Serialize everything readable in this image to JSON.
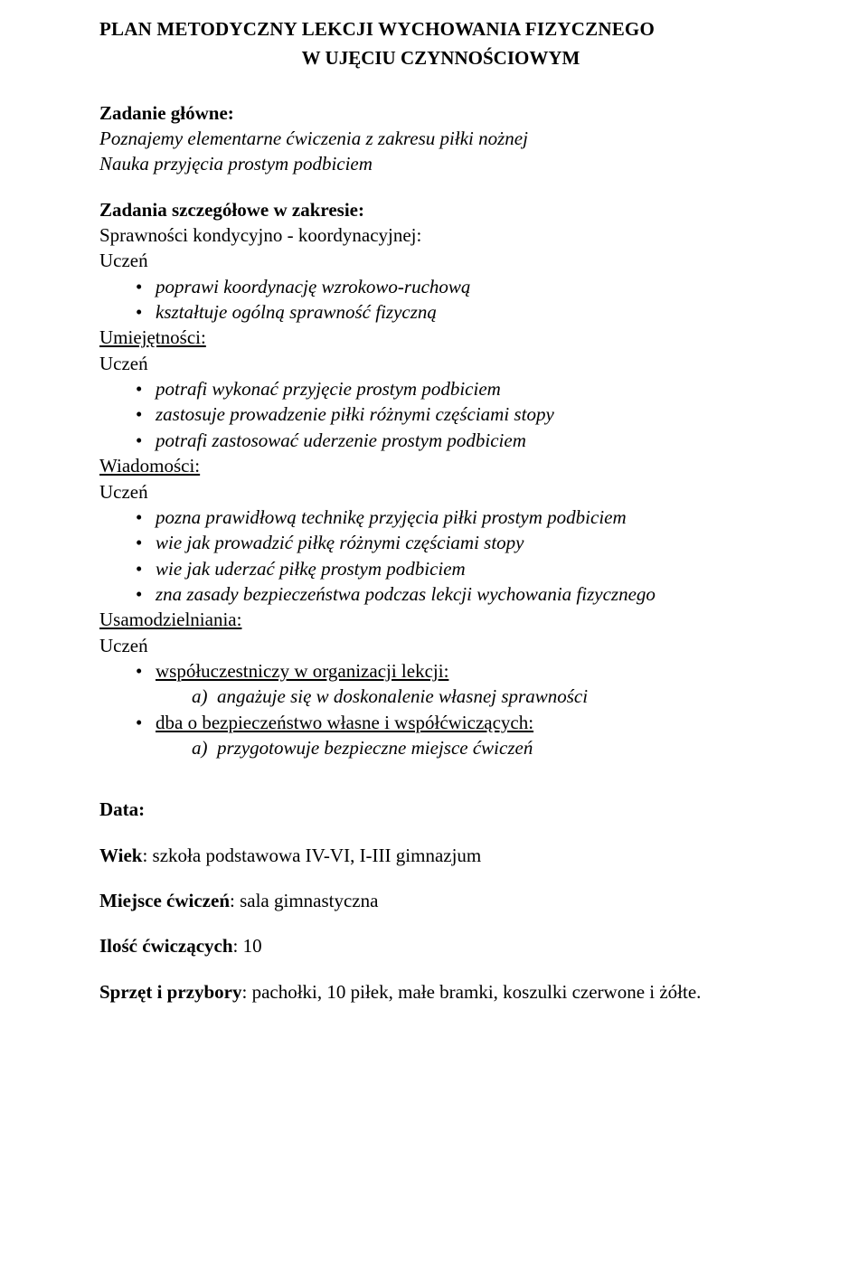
{
  "title": "PLAN METODYCZNY LEKCJI WYCHOWANIA FIZYCZNEGO",
  "subtitle": "W UJĘCIU CZYNNOŚCIOWYM",
  "mainTask": {
    "label": "Zadanie główne:",
    "line1": "Poznajemy elementarne ćwiczenia z zakresu piłki nożnej",
    "line2": "Nauka przyjęcia prostym podbiciem"
  },
  "detailedTasks": {
    "label": "Zadania szczegółowe w zakresie:",
    "groups": [
      {
        "heading": "Sprawności kondycyjno - koordynacyjnej:",
        "subject": "Uczeń",
        "items": [
          {
            "text": "poprawi koordynację wzrokowo-ruchową",
            "italic": true
          },
          {
            "text": "kształtuje ogólną sprawność fizyczną",
            "italic": true
          }
        ]
      },
      {
        "heading": "Umiejętności:",
        "headingUnderline": true,
        "subject": "Uczeń",
        "items": [
          {
            "text": "potrafi wykonać przyjęcie prostym podbiciem",
            "italic": true
          },
          {
            "text": "zastosuje prowadzenie piłki różnymi częściami stopy",
            "italic": true
          },
          {
            "text": "potrafi zastosować uderzenie prostym podbiciem",
            "italic": true
          }
        ]
      },
      {
        "heading": "Wiadomości:",
        "headingUnderline": true,
        "subject": "Uczeń",
        "items": [
          {
            "text": "pozna prawidłową technikę przyjęcia piłki prostym podbiciem",
            "italic": true
          },
          {
            "text": "wie jak prowadzić piłkę różnymi częściami stopy",
            "italic": true
          },
          {
            "text": "wie jak uderzać piłkę prostym podbiciem",
            "italic": true
          },
          {
            "text": "zna zasady bezpieczeństwa podczas lekcji wychowania fizycznego",
            "italic": true
          }
        ]
      },
      {
        "heading": "Usamodzielniania:",
        "headingUnderline": true,
        "subject": "Uczeń",
        "items": [
          {
            "text": "współuczestniczy w organizacji lekcji:",
            "underline": true,
            "sub": [
              {
                "marker": "a)",
                "text": "angażuje się w doskonalenie własnej sprawności"
              }
            ]
          },
          {
            "text": "dba o bezpieczeństwo własne i współćwiczących:",
            "underline": true,
            "sub": [
              {
                "marker": "a)",
                "text": "przygotowuje bezpieczne miejsce ćwiczeń"
              }
            ]
          }
        ]
      }
    ]
  },
  "meta": {
    "date": {
      "label": "Data:"
    },
    "age": {
      "label": "Wiek",
      "value": ": szkoła podstawowa IV-VI, I-III gimnazjum"
    },
    "place": {
      "label": "Miejsce ćwiczeń",
      "value": ": sala gimnastyczna"
    },
    "count": {
      "label": "Ilość ćwiczących",
      "value": ": 10"
    },
    "equipment": {
      "label": "Sprzęt i przybory",
      "value": ": pachołki, 10 piłek, małe bramki, koszulki czerwone i żółte."
    }
  }
}
